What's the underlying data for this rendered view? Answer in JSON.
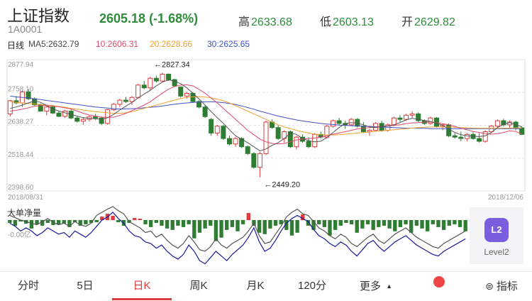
{
  "header": {
    "title": "上证指数",
    "code": "1A0001",
    "price_change": "2605.18 (-1.68%)",
    "high_label": "高",
    "high": "2633.68",
    "low_label": "低",
    "low": "2603.13",
    "open_label": "开",
    "open": "2629.82"
  },
  "ma": {
    "period_label": "日线",
    "ma5": "MA5:2632.79",
    "ma10": "10:2606.31",
    "ma20": "20:2628.66",
    "ma30": "30:2625.65"
  },
  "colors": {
    "up": "#e03a3a",
    "down": "#2e7d32",
    "ma5": "#555555",
    "ma10": "#e04a6a",
    "ma20": "#f0a030",
    "ma30": "#4050c0",
    "main_line": "#1a1a9a"
  },
  "chart_data": {
    "type": "candlestick",
    "y_ticks": [
      "2877.94",
      "2758.10",
      "2638.27",
      "2518.44",
      "2398.60"
    ],
    "ylim": [
      2398.6,
      2877.94
    ],
    "start_date": "2018/08/31",
    "end_date": "2018/12/06",
    "max_annotation": "←2827.34",
    "min_annotation": "←2449.20",
    "candles": [
      [
        2680,
        2730,
        2670,
        2728
      ],
      [
        2728,
        2745,
        2715,
        2720
      ],
      [
        2720,
        2765,
        2705,
        2760
      ],
      [
        2760,
        2770,
        2730,
        2735
      ],
      [
        2735,
        2740,
        2710,
        2713
      ],
      [
        2713,
        2718,
        2688,
        2690
      ],
      [
        2690,
        2708,
        2675,
        2705
      ],
      [
        2705,
        2712,
        2680,
        2683
      ],
      [
        2683,
        2692,
        2668,
        2671
      ],
      [
        2671,
        2695,
        2665,
        2690
      ],
      [
        2690,
        2698,
        2660,
        2665
      ],
      [
        2665,
        2672,
        2648,
        2653
      ],
      [
        2653,
        2668,
        2640,
        2660
      ],
      [
        2660,
        2675,
        2652,
        2670
      ],
      [
        2670,
        2680,
        2658,
        2665
      ],
      [
        2665,
        2670,
        2640,
        2645
      ],
      [
        2645,
        2698,
        2640,
        2695
      ],
      [
        2695,
        2720,
        2690,
        2715
      ],
      [
        2715,
        2735,
        2705,
        2730
      ],
      [
        2730,
        2742,
        2720,
        2725
      ],
      [
        2725,
        2745,
        2712,
        2740
      ],
      [
        2740,
        2790,
        2735,
        2785
      ],
      [
        2785,
        2800,
        2770,
        2775
      ],
      [
        2775,
        2815,
        2765,
        2810
      ],
      [
        2810,
        2820,
        2795,
        2800
      ],
      [
        2800,
        2830,
        2795,
        2825
      ],
      [
        2825,
        2827,
        2800,
        2805
      ],
      [
        2805,
        2808,
        2778,
        2782
      ],
      [
        2778,
        2780,
        2740,
        2745
      ],
      [
        2745,
        2760,
        2735,
        2755
      ],
      [
        2755,
        2760,
        2720,
        2725
      ],
      [
        2725,
        2730,
        2700,
        2705
      ],
      [
        2705,
        2712,
        2665,
        2670
      ],
      [
        2660,
        2665,
        2600,
        2610
      ],
      [
        2610,
        2640,
        2600,
        2635
      ],
      [
        2635,
        2640,
        2585,
        2590
      ],
      [
        2590,
        2600,
        2565,
        2570
      ],
      [
        2570,
        2595,
        2560,
        2590
      ],
      [
        2590,
        2595,
        2555,
        2560
      ],
      [
        2560,
        2565,
        2530,
        2535
      ],
      [
        2535,
        2540,
        2480,
        2485
      ],
      [
        2485,
        2540,
        2449,
        2535
      ],
      [
        2535,
        2655,
        2530,
        2650
      ],
      [
        2650,
        2660,
        2625,
        2630
      ],
      [
        2630,
        2640,
        2585,
        2590
      ],
      [
        2590,
        2620,
        2575,
        2615
      ],
      [
        2615,
        2620,
        2555,
        2560
      ],
      [
        2560,
        2600,
        2550,
        2595
      ],
      [
        2595,
        2605,
        2575,
        2580
      ],
      [
        2580,
        2595,
        2555,
        2560
      ],
      [
        2560,
        2610,
        2555,
        2605
      ],
      [
        2605,
        2615,
        2590,
        2595
      ],
      [
        2595,
        2640,
        2590,
        2635
      ],
      [
        2635,
        2660,
        2630,
        2655
      ],
      [
        2655,
        2665,
        2640,
        2645
      ],
      [
        2645,
        2655,
        2625,
        2640
      ],
      [
        2640,
        2665,
        2635,
        2660
      ],
      [
        2660,
        2665,
        2630,
        2635
      ],
      [
        2635,
        2650,
        2610,
        2615
      ],
      [
        2615,
        2625,
        2600,
        2620
      ],
      [
        2620,
        2650,
        2615,
        2645
      ],
      [
        2645,
        2655,
        2615,
        2620
      ],
      [
        2620,
        2645,
        2615,
        2640
      ],
      [
        2640,
        2670,
        2635,
        2665
      ],
      [
        2665,
        2675,
        2650,
        2660
      ],
      [
        2660,
        2680,
        2655,
        2675
      ],
      [
        2675,
        2690,
        2665,
        2680
      ],
      [
        2680,
        2685,
        2650,
        2655
      ],
      [
        2655,
        2660,
        2640,
        2645
      ],
      [
        2645,
        2670,
        2640,
        2665
      ],
      [
        2665,
        2668,
        2630,
        2635
      ],
      [
        2635,
        2645,
        2620,
        2640
      ],
      [
        2640,
        2645,
        2595,
        2600
      ],
      [
        2600,
        2610,
        2590,
        2595
      ],
      [
        2595,
        2615,
        2580,
        2590
      ],
      [
        2590,
        2610,
        2580,
        2605
      ],
      [
        2605,
        2615,
        2585,
        2590
      ],
      [
        2590,
        2610,
        2575,
        2580
      ],
      [
        2580,
        2620,
        2575,
        2615
      ],
      [
        2615,
        2640,
        2610,
        2635
      ],
      [
        2635,
        2660,
        2630,
        2655
      ],
      [
        2655,
        2662,
        2635,
        2640
      ],
      [
        2640,
        2655,
        2630,
        2650
      ],
      [
        2650,
        2655,
        2620,
        2629
      ],
      [
        2629,
        2634,
        2603,
        2605
      ]
    ],
    "ma5": [
      2700,
      2705,
      2712,
      2720,
      2728,
      2722,
      2710,
      2698,
      2690,
      2684,
      2678,
      2672,
      2666,
      2664,
      2662,
      2660,
      2666,
      2678,
      2694,
      2708,
      2722,
      2738,
      2752,
      2766,
      2782,
      2796,
      2804,
      2800,
      2790,
      2775,
      2755,
      2735,
      2712,
      2688,
      2666,
      2645,
      2622,
      2600,
      2588,
      2575,
      2560,
      2545,
      2552,
      2565,
      2575,
      2590,
      2610,
      2605,
      2590,
      2582,
      2578,
      2580,
      2594,
      2612,
      2630,
      2645,
      2648,
      2646,
      2640,
      2632,
      2630,
      2634,
      2636,
      2640,
      2648,
      2658,
      2664,
      2660,
      2656,
      2652,
      2646,
      2638,
      2624,
      2612,
      2604,
      2600,
      2598,
      2597,
      2600,
      2612,
      2630,
      2642,
      2648,
      2640,
      2633
    ],
    "ma10": [
      2690,
      2693,
      2697,
      2702,
      2708,
      2710,
      2710,
      2708,
      2706,
      2702,
      2698,
      2690,
      2682,
      2676,
      2672,
      2668,
      2667,
      2668,
      2674,
      2682,
      2692,
      2702,
      2712,
      2724,
      2740,
      2756,
      2770,
      2780,
      2785,
      2786,
      2782,
      2770,
      2755,
      2738,
      2720,
      2700,
      2680,
      2660,
      2640,
      2620,
      2604,
      2588,
      2578,
      2572,
      2570,
      2572,
      2578,
      2585,
      2588,
      2590,
      2592,
      2595,
      2600,
      2606,
      2610,
      2615,
      2620,
      2625,
      2628,
      2630,
      2632,
      2634,
      2636,
      2638,
      2640,
      2644,
      2647,
      2648,
      2650,
      2650,
      2648,
      2644,
      2640,
      2634,
      2628,
      2622,
      2616,
      2612,
      2608,
      2606,
      2608,
      2612,
      2618,
      2616,
      2606
    ],
    "ma20": [
      2725,
      2722,
      2720,
      2718,
      2716,
      2714,
      2712,
      2710,
      2707,
      2704,
      2700,
      2697,
      2694,
      2691,
      2688,
      2686,
      2684,
      2682,
      2682,
      2684,
      2688,
      2694,
      2700,
      2706,
      2712,
      2718,
      2724,
      2730,
      2736,
      2740,
      2742,
      2743,
      2742,
      2738,
      2734,
      2728,
      2720,
      2710,
      2700,
      2690,
      2680,
      2670,
      2660,
      2650,
      2640,
      2632,
      2626,
      2620,
      2615,
      2610,
      2606,
      2604,
      2603,
      2603,
      2604,
      2606,
      2608,
      2610,
      2612,
      2614,
      2616,
      2618,
      2620,
      2622,
      2624,
      2626,
      2628,
      2630,
      2631,
      2632,
      2632,
      2632,
      2632,
      2631,
      2630,
      2629,
      2628,
      2627,
      2627,
      2627,
      2627,
      2628,
      2628,
      2629,
      2628
    ],
    "ma30": [
      2745,
      2742,
      2740,
      2738,
      2735,
      2732,
      2729,
      2726,
      2723,
      2720,
      2717,
      2714,
      2711,
      2708,
      2705,
      2703,
      2701,
      2699,
      2698,
      2698,
      2699,
      2700,
      2702,
      2704,
      2706,
      2709,
      2712,
      2715,
      2718,
      2720,
      2722,
      2723,
      2724,
      2724,
      2723,
      2721,
      2718,
      2714,
      2709,
      2703,
      2697,
      2690,
      2684,
      2678,
      2672,
      2667,
      2662,
      2658,
      2654,
      2651,
      2648,
      2645,
      2643,
      2641,
      2639,
      2638,
      2637,
      2636,
      2635,
      2634,
      2633,
      2632,
      2631,
      2630,
      2629,
      2628,
      2628,
      2627,
      2627,
      2626,
      2626,
      2626,
      2626,
      2626,
      2626,
      2626,
      2626,
      2626,
      2626,
      2626,
      2626,
      2626,
      2626,
      2626,
      2626
    ],
    "indicator": {
      "label": "大单净量",
      "axis_label": "-0.00亿",
      "bars": [
        -4,
        -8,
        -2,
        -5,
        -12,
        -6,
        -8,
        -4,
        -7,
        -6,
        -5,
        -10,
        -3,
        -8,
        -6,
        -4,
        -3,
        5,
        9,
        6,
        -3,
        -8,
        -4,
        3,
        2,
        -6,
        -10,
        -4,
        -8,
        -12,
        -14,
        -8,
        -10,
        -6,
        -26,
        -18,
        -12,
        -8,
        -30,
        -25,
        -14,
        -10,
        -16,
        -6,
        10,
        -8,
        -18,
        -20,
        -12,
        -8,
        -6,
        -14,
        -22,
        -18,
        8,
        -8,
        -14,
        -6,
        -10,
        -22,
        -14,
        -8,
        -4,
        -6,
        -18,
        -12,
        -6,
        -14,
        -10,
        -8,
        -12,
        -16,
        -10,
        -6,
        -18,
        -8,
        -12,
        -16,
        -6,
        -10,
        -14,
        -8,
        -6,
        -10,
        -16
      ],
      "line_dark": [
        6,
        3,
        0,
        -2,
        -4,
        -6,
        -2,
        2,
        -3,
        -6,
        -4,
        -8,
        -2,
        -6,
        -8,
        -4,
        6,
        10,
        14,
        18,
        12,
        8,
        -2,
        -6,
        -10,
        -16,
        -14,
        -22,
        -18,
        -26,
        -32,
        -36,
        -30,
        -20,
        -28,
        -38,
        -40,
        -34,
        -24,
        -32,
        -36,
        -30,
        -26,
        -22,
        -14,
        -4,
        -20,
        -30,
        -28,
        -18,
        -8,
        4,
        10,
        14,
        8,
        6,
        -2,
        -10,
        -14,
        -20,
        -24,
        -18,
        -22,
        -30,
        -34,
        -28,
        -22,
        -18,
        -26,
        -30,
        -24,
        -18,
        -14,
        -10,
        -16,
        -22,
        -26,
        -30,
        -34,
        -36,
        -30,
        -26,
        -22,
        -18,
        -14
      ],
      "line_blue": [
        -4,
        -8,
        -14,
        -10,
        -14,
        -20,
        -16,
        -10,
        -14,
        -18,
        -16,
        -22,
        -14,
        -18,
        -22,
        -16,
        -8,
        0,
        4,
        10,
        2,
        -4,
        -14,
        -20,
        -22,
        -28,
        -30,
        -36,
        -32,
        -40,
        -46,
        -50,
        -44,
        -32,
        -40,
        -52,
        -56,
        -48,
        -40,
        -46,
        -52,
        -44,
        -38,
        -32,
        -22,
        -10,
        -28,
        -40,
        -36,
        -26,
        -14,
        -4,
        2,
        6,
        2,
        -2,
        -12,
        -20,
        -24,
        -30,
        -34,
        -28,
        -32,
        -40,
        -46,
        -38,
        -30,
        -26,
        -34,
        -40,
        -34,
        -28,
        -24,
        -20,
        -26,
        -32,
        -36,
        -40,
        -44,
        -46,
        -40,
        -36,
        -32,
        -28,
        -24
      ]
    }
  },
  "level2": {
    "label": "Level2",
    "icon_text": "L2"
  },
  "tabs": [
    {
      "label": "分时"
    },
    {
      "label": "5日"
    },
    {
      "label": "日K"
    },
    {
      "label": "周K"
    },
    {
      "label": "月K"
    },
    {
      "label": "120分"
    },
    {
      "label": "更多"
    }
  ],
  "more_arrow": "▲",
  "indicator_button": {
    "icon": "⊜",
    "label": "指标"
  },
  "active_tab": "日K"
}
